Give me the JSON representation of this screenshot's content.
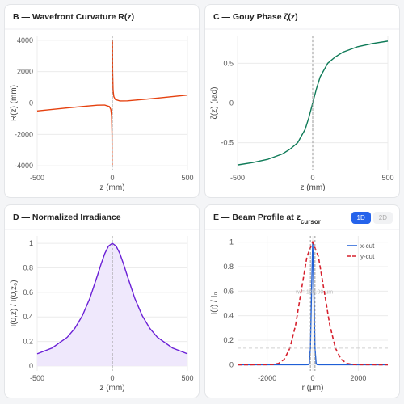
{
  "chart_data": [
    {
      "type": "line",
      "title": "B — Wavefront Curvature R(z)",
      "xlabel": "z (mm)",
      "ylabel": "R(z) (mm)",
      "x": [
        -500,
        -400,
        -300,
        -200,
        -100,
        -50,
        -20,
        -10,
        -5,
        -2,
        -1,
        0,
        1,
        2,
        5,
        10,
        20,
        50,
        100,
        200,
        300,
        400,
        500
      ],
      "series": [
        {
          "name": "R(z)",
          "color": "#e5410f",
          "values": [
            -508,
            -410,
            -313,
            -220,
            -140,
            -130,
            -220,
            -410,
            -805,
            -2002,
            -4001,
            null,
            4001,
            2002,
            805,
            410,
            220,
            130,
            140,
            220,
            313,
            410,
            508
          ]
        }
      ],
      "xlim": [
        -500,
        500
      ],
      "xticks": [
        -500,
        0,
        500
      ],
      "ylim": [
        -4300,
        4300
      ],
      "yticks": [
        -4000,
        -2000,
        0,
        2000,
        4000
      ],
      "grid": true,
      "vlines": [
        0
      ]
    },
    {
      "type": "line",
      "title": "C — Gouy Phase ζ(z)",
      "xlabel": "z (mm)",
      "ylabel": "ζ(z) (rad)",
      "x": [
        -500,
        -400,
        -300,
        -200,
        -150,
        -100,
        -50,
        -25,
        0,
        25,
        50,
        100,
        150,
        200,
        300,
        400,
        500
      ],
      "series": [
        {
          "name": "ζ(z)",
          "color": "#0e7a57",
          "values": [
            -0.78,
            -0.75,
            -0.71,
            -0.64,
            -0.58,
            -0.5,
            -0.33,
            -0.18,
            0,
            0.18,
            0.33,
            0.5,
            0.58,
            0.64,
            0.71,
            0.75,
            0.78
          ]
        }
      ],
      "xlim": [
        -500,
        500
      ],
      "xticks": [
        -500,
        0,
        500
      ],
      "ylim": [
        -0.85,
        0.85
      ],
      "yticks": [
        -0.5,
        0,
        0.5
      ],
      "grid": true,
      "vlines": [
        0
      ]
    },
    {
      "type": "area",
      "title": "D — Normalized Irradiance",
      "xlabel": "z (mm)",
      "ylabel": "I(0,z) / I(0,z₀)",
      "x": [
        -500,
        -400,
        -300,
        -250,
        -200,
        -150,
        -100,
        -75,
        -50,
        -25,
        0,
        25,
        50,
        75,
        100,
        150,
        200,
        250,
        300,
        400,
        500
      ],
      "series": [
        {
          "name": "I(0,z)",
          "color": "#6a1fd6",
          "fill": "#efe8fc",
          "values": [
            0.099,
            0.147,
            0.234,
            0.306,
            0.408,
            0.55,
            0.734,
            0.83,
            0.917,
            0.978,
            1,
            0.978,
            0.917,
            0.83,
            0.734,
            0.55,
            0.408,
            0.306,
            0.234,
            0.147,
            0.099
          ]
        }
      ],
      "xlim": [
        -500,
        500
      ],
      "xticks": [
        -500,
        0,
        500
      ],
      "ylim": [
        -0.04,
        1.06
      ],
      "yticks": [
        0,
        0.2,
        0.4,
        0.6,
        0.8,
        1
      ],
      "grid": true,
      "vlines": [
        0
      ]
    },
    {
      "type": "line",
      "title": "E — Beam Profile at z",
      "title_sub": "cursor",
      "xlabel": "r (µm)",
      "ylabel": "I(r) / I₀",
      "series": [
        {
          "name": "x-cut",
          "color": "#1f5fd6",
          "dash": false,
          "x": [
            -3300,
            -300,
            -200,
            -150,
            -100,
            -50,
            0,
            50,
            100,
            150,
            200,
            300,
            3300
          ],
          "values": [
            0,
            0,
            0.0003,
            0.011,
            0.1353,
            0.6065,
            1,
            0.6065,
            0.1353,
            0.011,
            0.0003,
            0,
            0
          ]
        },
        {
          "name": "y-cut",
          "color": "#d6202d",
          "dash": true,
          "x": [
            -3300,
            -2000,
            -1750,
            -1500,
            -1250,
            -1000,
            -750,
            -500,
            -250,
            0,
            250,
            500,
            750,
            1000,
            1250,
            1500,
            1750,
            2000,
            3300
          ],
          "values": [
            0,
            0.0003,
            0.0022,
            0.0111,
            0.0439,
            0.1353,
            0.3247,
            0.6065,
            0.8825,
            1,
            0.8825,
            0.6065,
            0.3247,
            0.1353,
            0.0439,
            0.0111,
            0.0022,
            0.0003,
            0
          ]
        }
      ],
      "xlim": [
        -3300,
        3300
      ],
      "xticks": [
        -2000,
        0,
        2000
      ],
      "ylim": [
        -0.05,
        1.05
      ],
      "yticks": [
        0,
        0.2,
        0.4,
        0.6,
        0.8,
        1
      ],
      "grid": true,
      "vlines": [
        -100,
        100
      ],
      "hlines": [
        0.135
      ],
      "annotation": "w = 100.00 µm",
      "legend": "upper right",
      "toggle": {
        "options": [
          "1D",
          "2D"
        ],
        "active": 0
      }
    }
  ]
}
